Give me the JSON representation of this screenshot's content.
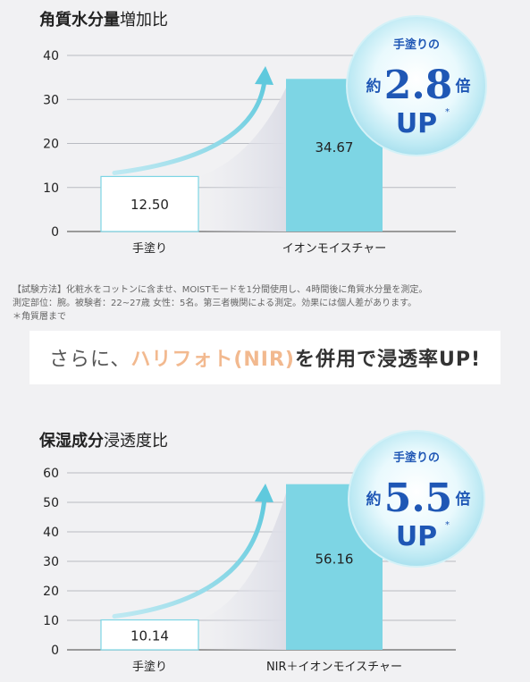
{
  "chart_data": [
    {
      "type": "bar",
      "title_bold": "角質水分量",
      "title_rest": "増加比",
      "categories": [
        "手塗り",
        "イオンモイスチャー"
      ],
      "values": [
        12.5,
        34.67
      ],
      "value_labels": [
        "12.50",
        "34.67"
      ],
      "ylim": [
        0,
        40
      ],
      "yticks": [
        0,
        10,
        20,
        30,
        40
      ],
      "bar_colors": [
        "#ffffff",
        "#7dd5e4"
      ],
      "grid": true,
      "badge": {
        "top": "手塗りの",
        "prefix": "約",
        "number": "2.8",
        "suffix": "倍",
        "up": "UP",
        "star": "*"
      }
    },
    {
      "type": "bar",
      "title_bold": "保湿成分",
      "title_rest": "浸透度比",
      "categories": [
        "手塗り",
        "NIR＋イオンモイスチャー"
      ],
      "values": [
        10.14,
        56.16
      ],
      "value_labels": [
        "10.14",
        "56.16"
      ],
      "ylim": [
        0,
        60
      ],
      "yticks": [
        0,
        10,
        20,
        30,
        40,
        50,
        60
      ],
      "bar_colors": [
        "#ffffff",
        "#7dd5e4"
      ],
      "grid": true,
      "badge": {
        "top": "手塗りの",
        "prefix": "約",
        "number": "5.5",
        "suffix": "倍",
        "up": "UP",
        "star": "*"
      }
    }
  ],
  "note": {
    "line1": "【試験方法】化粧水をコットンに含ませ、MOISTモードを1分間使用し、4時間後に角質水分量を測定。",
    "line2": "測定部位：腕。被験者：22~27歳 女性：5名。第三者機関による測定。効果には個人差があります。",
    "line3": "＊角質層まで"
  },
  "banner": {
    "pre": "さらに、",
    "accent": "ハリフォト(NIR)",
    "post": "を併用で浸透率UP!"
  },
  "colors": {
    "accent": "#f2b98f",
    "bar": "#7dd5e4",
    "badge_text": "#1f57b5"
  }
}
